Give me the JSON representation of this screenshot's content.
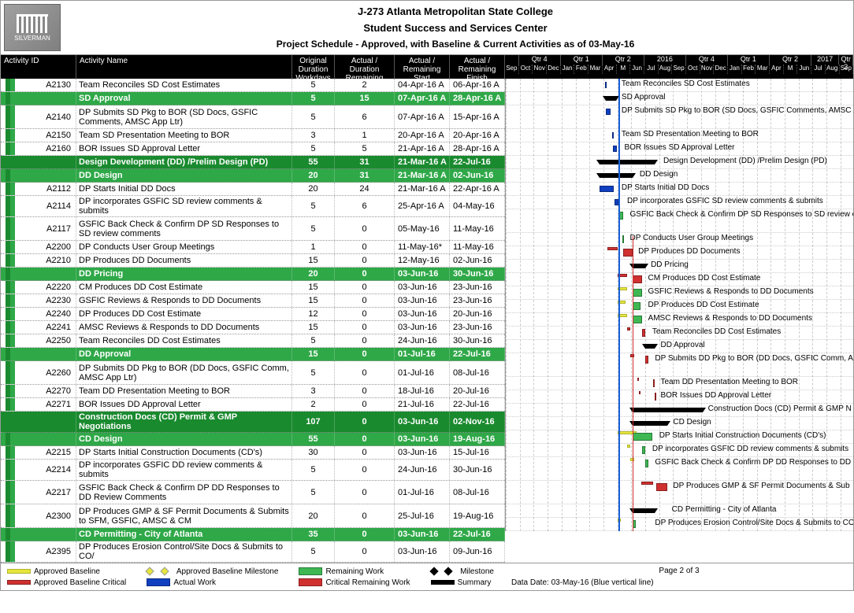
{
  "logo_text": "SILVERMAN",
  "header": {
    "line1": "J-273 Atlanta Metropolitan State College",
    "line2": "Student Success and Services Center",
    "line3": "Project Schedule - Approved, with Baseline & Current Activities as of 03-May-16"
  },
  "columns": {
    "id": "Activity ID",
    "name": "Activity Name",
    "od": "Original Duration Workdays",
    "ad": "Actual / Duration Remaining Workdays",
    "as": "Actual / Remaining Start",
    "af": "Actual / Remaining Finish"
  },
  "timeline": {
    "start_month_index": 0,
    "months": [
      "Sep",
      "Oct",
      "Nov",
      "Dec",
      "Jan",
      "Feb",
      "Mar",
      "Apr",
      "M",
      "Jun",
      "Jul",
      "Aug",
      "Sep",
      "Oct",
      "Nov",
      "Dec",
      "Jan",
      "Feb",
      "Mar",
      "Apr",
      "M",
      "Jun",
      "Jul",
      "Aug",
      "Sep"
    ],
    "month_width": 17.7,
    "quarter_labels": [
      {
        "label": "",
        "cols": 1
      },
      {
        "label": "Qtr 4",
        "cols": 3
      },
      {
        "label": "Qtr 1",
        "cols": 3
      },
      {
        "label": "Qtr 2",
        "cols": 3
      },
      {
        "label": "2016",
        "cols": 3,
        "year": true
      },
      {
        "label": "Qtr 4",
        "cols": 3
      },
      {
        "label": "Qtr 1",
        "cols": 3
      },
      {
        "label": "Qtr 2",
        "cols": 3
      },
      {
        "label": "2017",
        "cols": 2,
        "year": true
      },
      {
        "label": "Qtr 3",
        "cols": 1
      }
    ],
    "data_date_pos": 8.1
  },
  "rows": [
    {
      "type": "act",
      "indent": 3,
      "id": "A2130",
      "name": "Team Reconciles SD Cost Estimates",
      "od": "5",
      "ad": "2",
      "as": "04-Apr-16 A",
      "af": "06-Apr-16 A",
      "bars": [
        {
          "t": "actual",
          "s": 7.1,
          "e": 7.2
        }
      ],
      "label": "Team Reconciles SD Cost Estimates",
      "labelx": 8.3
    },
    {
      "type": "s2",
      "indent": 2,
      "id": "",
      "name": "SD Approval",
      "od": "5",
      "ad": "15",
      "as": "07-Apr-16 A",
      "af": "28-Apr-16 A",
      "bars": [
        {
          "t": "summary",
          "s": 7.2,
          "e": 7.9
        }
      ],
      "label": "SD Approval",
      "labelx": 8.3
    },
    {
      "type": "act",
      "indent": 3,
      "id": "A2140",
      "name": "DP Submits SD Pkg to BOR (SD Docs, GSFIC Comments, AMSC App Ltr)",
      "od": "5",
      "ad": "6",
      "as": "07-Apr-16 A",
      "af": "15-Apr-16 A",
      "tall": true,
      "bars": [
        {
          "t": "actual",
          "s": 7.2,
          "e": 7.5
        }
      ],
      "label": "DP Submits SD Pkg to BOR (SD Docs, GSFIC Comments, AMSC Ap",
      "labelx": 8.3
    },
    {
      "type": "act",
      "indent": 3,
      "id": "A2150",
      "name": "Team SD Presentation Meeting to BOR",
      "od": "3",
      "ad": "1",
      "as": "20-Apr-16 A",
      "af": "20-Apr-16 A",
      "bars": [
        {
          "t": "actual",
          "s": 7.65,
          "e": 7.7
        }
      ],
      "label": "Team SD Presentation Meeting to BOR",
      "labelx": 8.3
    },
    {
      "type": "act",
      "indent": 3,
      "id": "A2160",
      "name": "BOR Issues SD Approval Letter",
      "od": "5",
      "ad": "5",
      "as": "21-Apr-16 A",
      "af": "28-Apr-16 A",
      "bars": [
        {
          "t": "actual",
          "s": 7.7,
          "e": 7.95
        }
      ],
      "label": "BOR Issues SD Approval Letter",
      "labelx": 8.5
    },
    {
      "type": "s1",
      "indent": 1,
      "id": "",
      "name": "Design Development (DD) /Prelim Design (PD)",
      "od": "55",
      "ad": "31",
      "as": "21-Mar-16 A",
      "af": "22-Jul-16",
      "bars": [
        {
          "t": "summary",
          "s": 6.7,
          "e": 10.7
        }
      ],
      "label": "Design Development (DD) /Prelim Design (PD)",
      "labelx": 11.3
    },
    {
      "type": "s2",
      "indent": 2,
      "id": "",
      "name": "DD Design",
      "od": "20",
      "ad": "31",
      "as": "21-Mar-16 A",
      "af": "02-Jun-16",
      "bars": [
        {
          "t": "summary",
          "s": 6.7,
          "e": 9.1
        }
      ],
      "label": "DD Design",
      "labelx": 9.6
    },
    {
      "type": "act",
      "indent": 3,
      "id": "A2112",
      "name": "DP Starts Initial DD Docs",
      "od": "20",
      "ad": "24",
      "as": "21-Mar-16 A",
      "af": "22-Apr-16 A",
      "bars": [
        {
          "t": "actual",
          "s": 6.7,
          "e": 7.75
        }
      ],
      "label": "DP Starts Initial DD Docs",
      "labelx": 8.3
    },
    {
      "type": "act",
      "indent": 3,
      "id": "A2114",
      "name": "DP incorporates GSFIC SD review comments & submits",
      "od": "5",
      "ad": "6",
      "as": "25-Apr-16 A",
      "af": "04-May-16",
      "bars": [
        {
          "t": "actual",
          "s": 7.8,
          "e": 8.1
        },
        {
          "t": "remain",
          "s": 8.1,
          "e": 8.15
        }
      ],
      "label": "DP incorporates GSFIC SD review comments & submits",
      "labelx": 8.7
    },
    {
      "type": "act",
      "indent": 3,
      "id": "A2117",
      "name": "GSFIC Back Check & Confirm DP SD Responses to SD review comments",
      "od": "5",
      "ad": "0",
      "as": "05-May-16",
      "af": "11-May-16",
      "tall": true,
      "bars": [
        {
          "t": "remain",
          "s": 8.15,
          "e": 8.4
        }
      ],
      "label": "GSFIC Back Check & Confirm DP SD Responses to SD review c",
      "labelx": 8.9
    },
    {
      "type": "act",
      "indent": 3,
      "id": "A2200",
      "name": "DP Conducts User Group Meetings",
      "od": "1",
      "ad": "0",
      "as": "11-May-16*",
      "af": "11-May-16",
      "bars": [
        {
          "t": "remain",
          "s": 8.35,
          "e": 8.4
        }
      ],
      "label": "DP Conducts User Group Meetings",
      "labelx": 8.9
    },
    {
      "type": "act",
      "indent": 3,
      "id": "A2210",
      "name": "DP Produces DD Documents",
      "od": "15",
      "ad": "0",
      "as": "12-May-16",
      "af": "02-Jun-16",
      "bars": [
        {
          "t": "baselinecrit",
          "s": 7.3,
          "e": 8.0
        },
        {
          "t": "critical",
          "s": 8.4,
          "e": 9.1
        }
      ],
      "label": "DP Produces DD Documents",
      "labelx": 9.5
    },
    {
      "type": "s2",
      "indent": 2,
      "id": "",
      "name": "DD Pricing",
      "od": "20",
      "ad": "0",
      "as": "03-Jun-16",
      "af": "30-Jun-16",
      "bars": [
        {
          "t": "summary",
          "s": 9.1,
          "e": 10.0
        }
      ],
      "label": "DD Pricing",
      "labelx": 10.4
    },
    {
      "type": "act",
      "indent": 3,
      "id": "A2220",
      "name": "CM Produces DD Cost Estimate",
      "od": "15",
      "ad": "0",
      "as": "03-Jun-16",
      "af": "23-Jun-16",
      "bars": [
        {
          "t": "baselinecrit",
          "s": 8.0,
          "e": 8.7
        },
        {
          "t": "critical",
          "s": 9.1,
          "e": 9.75
        }
      ],
      "label": "CM Produces DD Cost Estimate",
      "labelx": 10.2
    },
    {
      "type": "act",
      "indent": 3,
      "id": "A2230",
      "name": "GSFIC Reviews & Responds to DD Documents",
      "od": "15",
      "ad": "0",
      "as": "03-Jun-16",
      "af": "23-Jun-16",
      "bars": [
        {
          "t": "baseline",
          "s": 8.0,
          "e": 8.7
        },
        {
          "t": "remain",
          "s": 9.1,
          "e": 9.75
        }
      ],
      "label": "GSFIC Reviews & Responds to DD Documents",
      "labelx": 10.2
    },
    {
      "type": "act",
      "indent": 3,
      "id": "A2240",
      "name": "DP Produces DD Cost Estimate",
      "od": "12",
      "ad": "0",
      "as": "03-Jun-16",
      "af": "20-Jun-16",
      "bars": [
        {
          "t": "baseline",
          "s": 8.0,
          "e": 8.6
        },
        {
          "t": "remain",
          "s": 9.1,
          "e": 9.65
        }
      ],
      "label": "DP Produces DD Cost Estimate",
      "labelx": 10.2
    },
    {
      "type": "act",
      "indent": 3,
      "id": "A2241",
      "name": "AMSC Reviews & Responds to DD Documents",
      "od": "15",
      "ad": "0",
      "as": "03-Jun-16",
      "af": "23-Jun-16",
      "bars": [
        {
          "t": "baseline",
          "s": 8.0,
          "e": 8.7
        },
        {
          "t": "remain",
          "s": 9.1,
          "e": 9.75
        }
      ],
      "label": "AMSC Reviews & Responds to DD Documents",
      "labelx": 10.2
    },
    {
      "type": "act",
      "indent": 3,
      "id": "A2250",
      "name": "Team Reconciles DD Cost Estimates",
      "od": "5",
      "ad": "0",
      "as": "24-Jun-16",
      "af": "30-Jun-16",
      "bars": [
        {
          "t": "baselinecrit",
          "s": 8.7,
          "e": 8.95
        },
        {
          "t": "critical",
          "s": 9.75,
          "e": 10.0
        }
      ],
      "label": "Team Reconciles DD Cost Estimates",
      "labelx": 10.5
    },
    {
      "type": "s2",
      "indent": 2,
      "id": "",
      "name": "DD Approval",
      "od": "15",
      "ad": "0",
      "as": "01-Jul-16",
      "af": "22-Jul-16",
      "bars": [
        {
          "t": "summary",
          "s": 10.0,
          "e": 10.7
        }
      ],
      "label": "DD Approval",
      "labelx": 11.1
    },
    {
      "type": "act",
      "indent": 3,
      "id": "A2260",
      "name": "DP Submits DD Pkg to BOR (DD Docs, GSFIC Comm, AMSC App Ltr)",
      "od": "5",
      "ad": "0",
      "as": "01-Jul-16",
      "af": "08-Jul-16",
      "tall": true,
      "bars": [
        {
          "t": "baselinecrit",
          "s": 8.95,
          "e": 9.2
        },
        {
          "t": "critical",
          "s": 10.0,
          "e": 10.25
        }
      ],
      "label": "DP Submits DD Pkg to BOR (DD Docs, GSFIC Comm, AM",
      "labelx": 10.7
    },
    {
      "type": "act",
      "indent": 3,
      "id": "A2270",
      "name": "Team DD Presentation Meeting to BOR",
      "od": "3",
      "ad": "0",
      "as": "18-Jul-16",
      "af": "20-Jul-16",
      "bars": [
        {
          "t": "baselinecrit",
          "s": 9.45,
          "e": 9.55
        },
        {
          "t": "critical",
          "s": 10.55,
          "e": 10.65
        }
      ],
      "label": "Team DD Presentation Meeting to BOR",
      "labelx": 11.1
    },
    {
      "type": "act",
      "indent": 3,
      "id": "A2271",
      "name": "BOR Issues DD Approval Letter",
      "od": "2",
      "ad": "0",
      "as": "21-Jul-16",
      "af": "22-Jul-16",
      "bars": [
        {
          "t": "baselinecrit",
          "s": 9.55,
          "e": 9.65
        },
        {
          "t": "critical",
          "s": 10.65,
          "e": 10.72
        }
      ],
      "label": "BOR Issues DD Approval Letter",
      "labelx": 11.1
    },
    {
      "type": "s1",
      "indent": 1,
      "id": "",
      "name": "Construction Docs (CD) Permit & GMP Negotiations",
      "od": "107",
      "ad": "0",
      "as": "03-Jun-16",
      "af": "02-Nov-16",
      "bars": [
        {
          "t": "summary",
          "s": 9.1,
          "e": 14.1
        }
      ],
      "label": "Construction Docs (CD) Permit & GMP N",
      "labelx": 14.5
    },
    {
      "type": "s2",
      "indent": 2,
      "id": "",
      "name": "CD Design",
      "od": "55",
      "ad": "0",
      "as": "03-Jun-16",
      "af": "19-Aug-16",
      "bars": [
        {
          "t": "summary",
          "s": 9.1,
          "e": 11.6
        }
      ],
      "label": "CD Design",
      "labelx": 12.0
    },
    {
      "type": "act",
      "indent": 3,
      "id": "A2215",
      "name": "DP Starts Initial Construction Documents (CD's)",
      "od": "30",
      "ad": "0",
      "as": "03-Jun-16",
      "af": "15-Jul-16",
      "bars": [
        {
          "t": "baseline",
          "s": 8.0,
          "e": 9.4
        },
        {
          "t": "remain",
          "s": 9.1,
          "e": 10.5
        }
      ],
      "label": "DP Starts Initial Construction Documents (CD's)",
      "labelx": 11.0
    },
    {
      "type": "act",
      "indent": 3,
      "id": "A2214",
      "name": "DP incorporates GSFIC DD review comments & submits",
      "od": "5",
      "ad": "0",
      "as": "24-Jun-16",
      "af": "30-Jun-16",
      "bars": [
        {
          "t": "baseline",
          "s": 8.7,
          "e": 8.95
        },
        {
          "t": "remain",
          "s": 9.75,
          "e": 10.0
        }
      ],
      "label": "DP incorporates GSFIC DD review comments & submits",
      "labelx": 10.5
    },
    {
      "type": "act",
      "indent": 3,
      "id": "A2217",
      "name": "GSFIC Back Check & Confirm DP DD Responses to DD Review Comments",
      "od": "5",
      "ad": "0",
      "as": "01-Jul-16",
      "af": "08-Jul-16",
      "tall": true,
      "bars": [
        {
          "t": "baseline",
          "s": 8.95,
          "e": 9.2
        },
        {
          "t": "remain",
          "s": 10.0,
          "e": 10.25
        }
      ],
      "label": "GSFIC Back Check & Confirm DP DD Responses to DD F",
      "labelx": 10.7
    },
    {
      "type": "act",
      "indent": 3,
      "id": "A2300",
      "name": "DP Produces GMP & SF Permit Documents & Submits to SFM, GSFIC, AMSC & CM",
      "od": "20",
      "ad": "0",
      "as": "25-Jul-16",
      "af": "19-Aug-16",
      "tall": true,
      "bars": [
        {
          "t": "baselinecrit",
          "s": 9.7,
          "e": 10.55
        },
        {
          "t": "critical",
          "s": 10.77,
          "e": 11.6
        }
      ],
      "label": "DP Produces GMP & SF Permit Documents & Sub",
      "labelx": 12.0
    },
    {
      "type": "s2",
      "indent": 2,
      "id": "",
      "name": "CD Permitting - City of Atlanta",
      "od": "35",
      "ad": "0",
      "as": "03-Jun-16",
      "af": "22-Jul-16",
      "bars": [
        {
          "t": "summary",
          "s": 9.1,
          "e": 10.7
        }
      ],
      "label": "CD Permitting - City of Atlanta",
      "labelx": 11.9
    },
    {
      "type": "act",
      "indent": 3,
      "id": "A2395",
      "name": "DP Produces Erosion Control/Site Docs & Submits to CO/",
      "od": "5",
      "ad": "0",
      "as": "03-Jun-16",
      "af": "09-Jun-16",
      "bars": [
        {
          "t": "baseline",
          "s": 8.0,
          "e": 8.25
        },
        {
          "t": "remain",
          "s": 9.1,
          "e": 9.3
        }
      ],
      "label": "DP Produces Erosion Control/Site Docs & Submits to COA",
      "labelx": 10.7
    }
  ],
  "legend": {
    "baseline": "Approved Baseline",
    "baseline_ms": "Approved Baseline Milestone",
    "remain": "Remaining Work",
    "ms": "Milestone",
    "basecrit": "Approved Baseline Critical",
    "actual": "Actual Work",
    "critrem": "Critical Remaining Work",
    "summary": "Summary"
  },
  "footer": {
    "page": "Page 2 of 3",
    "datadate": "Data Date: 03-May-16 (Blue vertical line)"
  },
  "colors": {
    "section1": "#1a8a2f",
    "section2": "#2fa848",
    "actual": "#1040c0",
    "remain": "#3fb854",
    "critical": "#d03030",
    "baseline": "#e6e63c",
    "summary": "#000000",
    "datadate_line": "#1a5fd8"
  }
}
